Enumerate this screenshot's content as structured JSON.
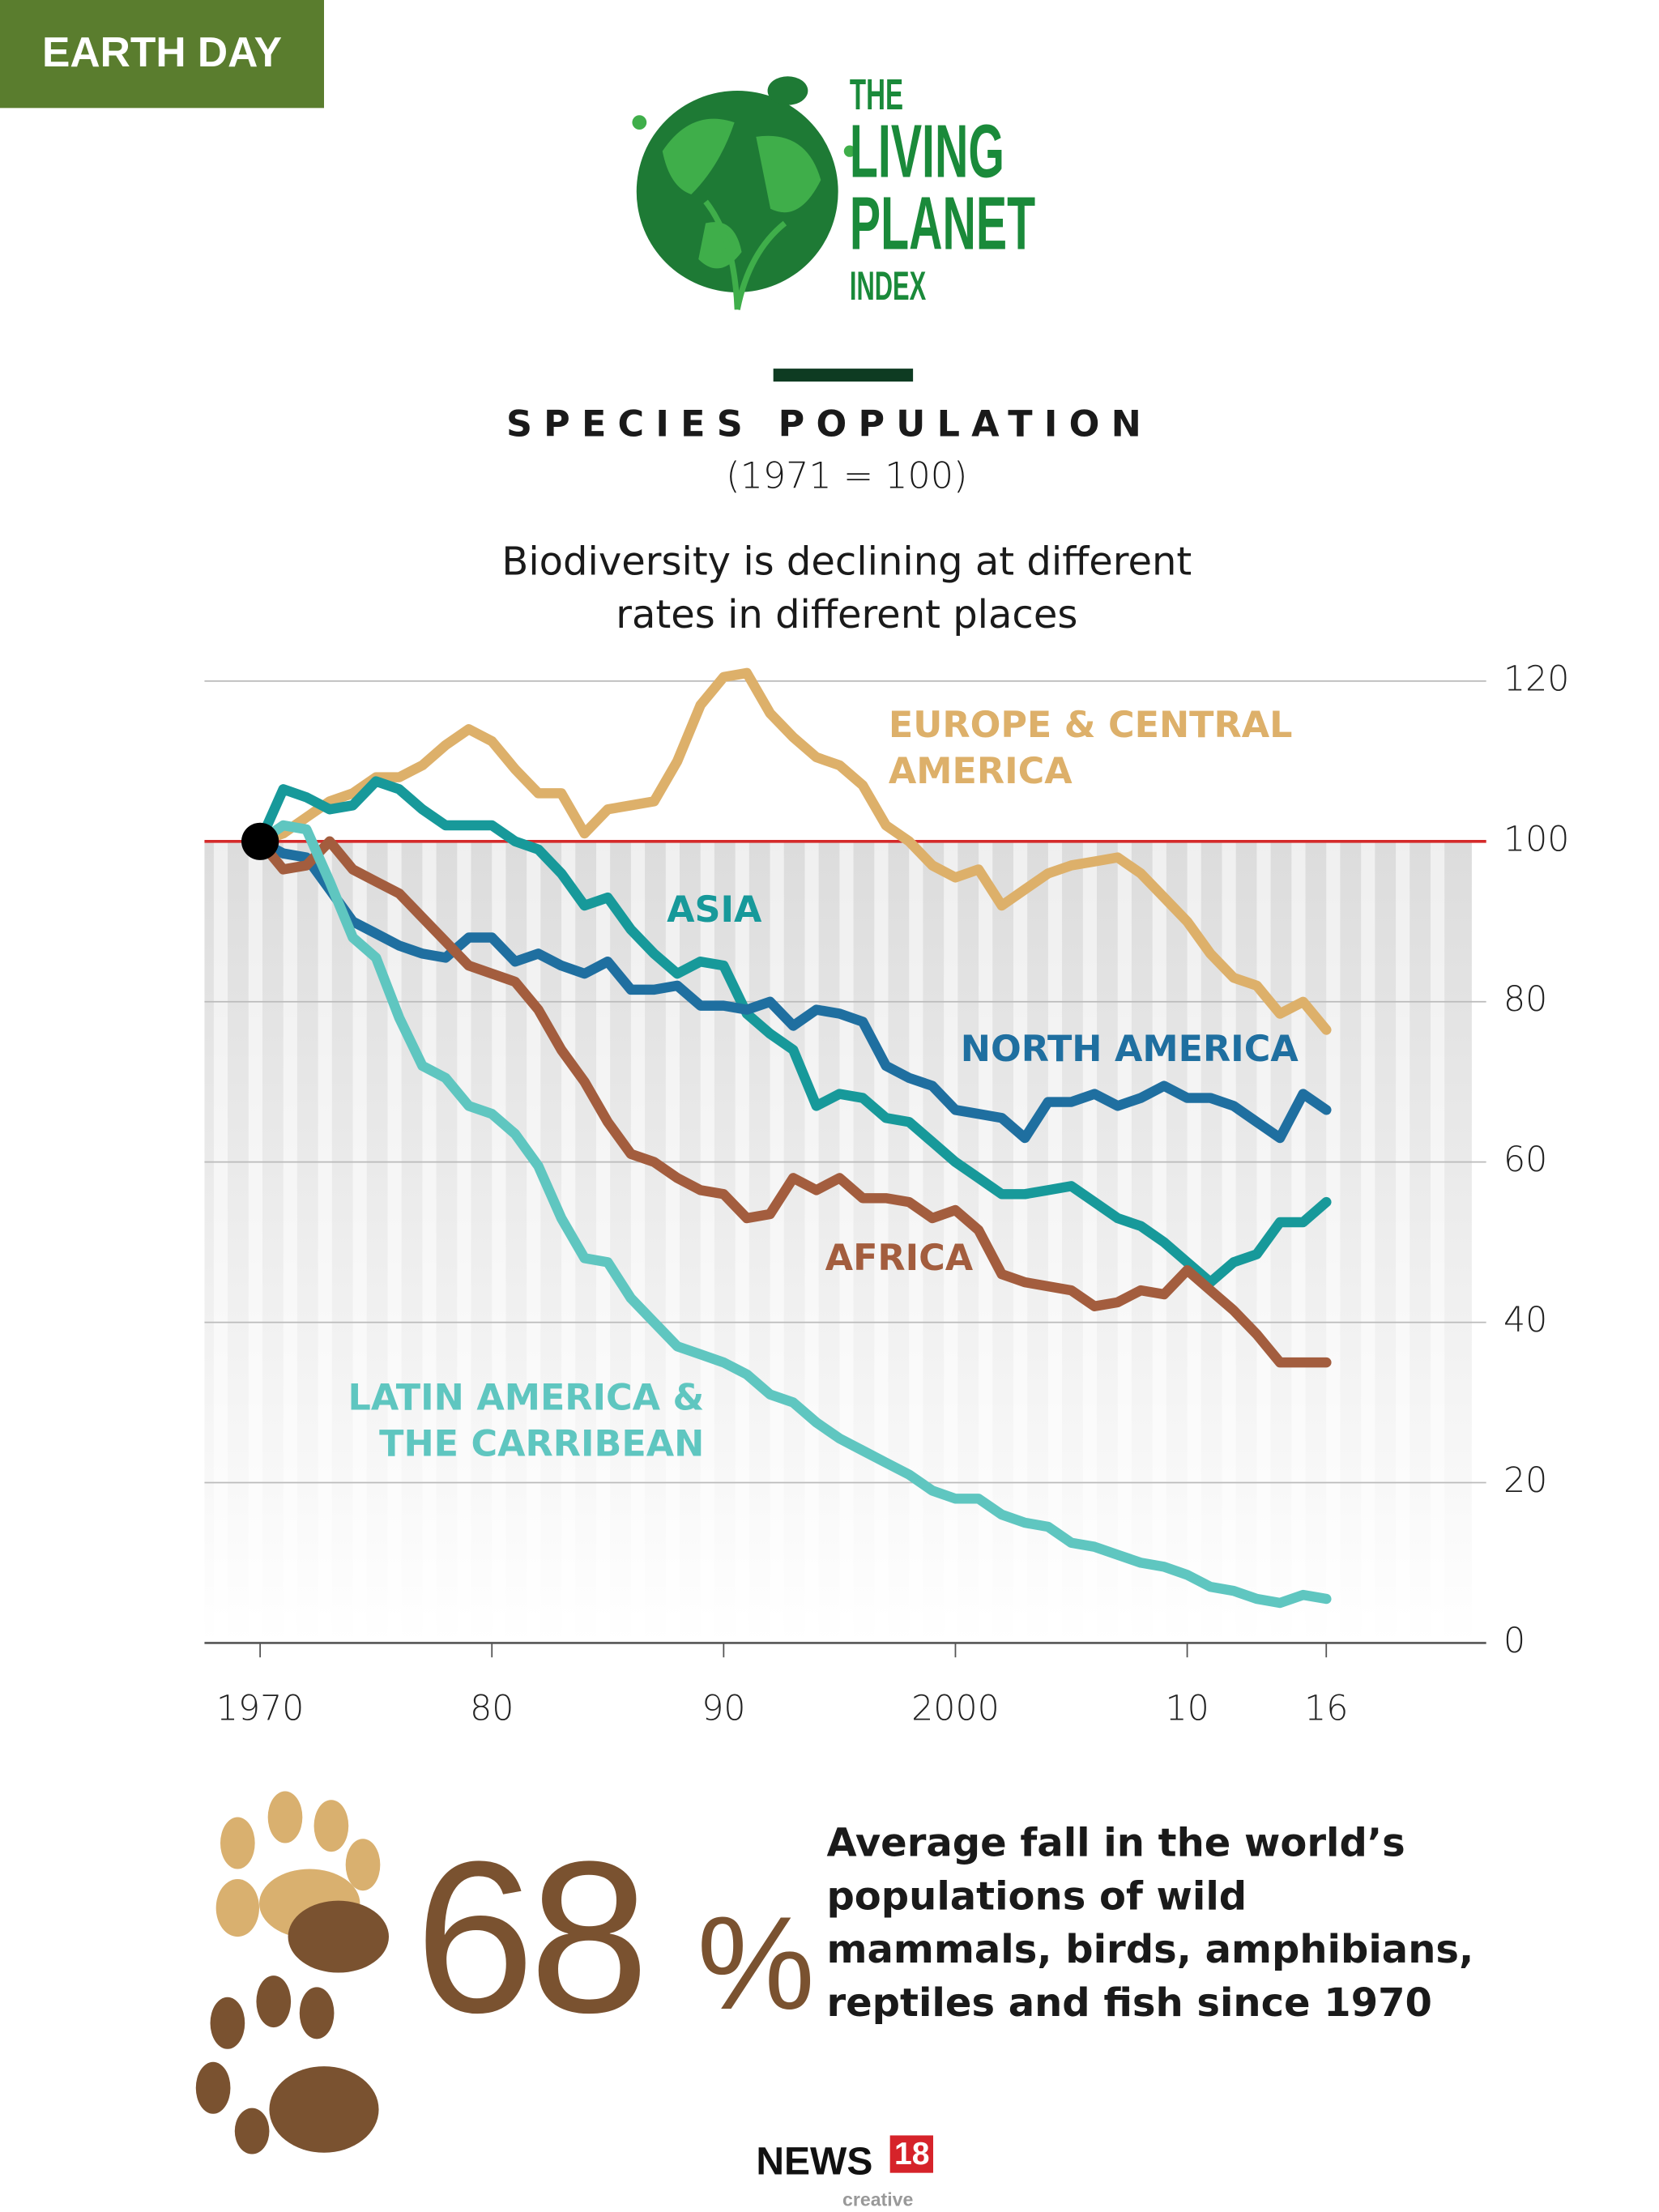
{
  "badge": "EARTH DAY",
  "logo": {
    "lines": [
      "THE",
      "LIVING",
      "PLANET",
      "INDEX"
    ]
  },
  "chart_data": {
    "type": "line",
    "title": "SPECIES POPULATION",
    "subtitle": "(1971 = 100)",
    "description": "Biodiversity is declining at different rates in different places",
    "x": [
      1970,
      1971,
      1972,
      1973,
      1974,
      1975,
      1976,
      1977,
      1978,
      1979,
      1980,
      1981,
      1982,
      1983,
      1984,
      1985,
      1986,
      1987,
      1988,
      1989,
      1990,
      1991,
      1992,
      1993,
      1994,
      1995,
      1996,
      1997,
      1998,
      1999,
      2000,
      2001,
      2002,
      2003,
      2004,
      2005,
      2006,
      2007,
      2008,
      2009,
      2010,
      2011,
      2012,
      2013,
      2014,
      2015,
      2016
    ],
    "series": [
      {
        "name": "EUROPE & CENTRAL AMERICA",
        "color": "#ddb06a",
        "values": [
          100,
          101,
          103,
          105,
          106,
          108,
          108,
          109.5,
          112,
          114,
          112.5,
          109,
          106,
          106,
          101,
          104,
          104.5,
          105,
          110,
          117,
          120.5,
          121,
          116,
          113,
          110.5,
          109.5,
          107,
          102,
          100,
          97,
          95.5,
          96.5,
          92,
          94,
          96,
          97,
          97.5,
          98,
          96,
          93,
          90,
          86,
          83,
          82,
          78.5,
          80,
          76.5
        ]
      },
      {
        "name": "ASIA",
        "color": "#17999a",
        "values": [
          100,
          106.5,
          105.5,
          104,
          104.5,
          107.5,
          106.5,
          104,
          102,
          102,
          102,
          100,
          99,
          96,
          92,
          93,
          89,
          86,
          83.5,
          85,
          84.5,
          78.5,
          76,
          74,
          67,
          68.5,
          68,
          65.5,
          65,
          62.5,
          60,
          58,
          56,
          56,
          56.5,
          57,
          55,
          53,
          52,
          50,
          47.5,
          45,
          47.5,
          48.5,
          52.5,
          52.5,
          55
        ]
      },
      {
        "name": "NORTH AMERICA",
        "color": "#1f6fa0",
        "values": [
          100,
          98.5,
          98,
          94,
          90,
          88.5,
          87,
          86,
          85.5,
          88,
          88,
          85,
          86,
          84.5,
          83.5,
          85,
          81.5,
          81.5,
          82,
          79.5,
          79.5,
          79,
          80,
          77,
          79,
          78.5,
          77.5,
          72,
          70.5,
          69.5,
          66.5,
          66,
          65.5,
          63,
          67.5,
          67.5,
          68.5,
          67,
          68,
          69.5,
          68,
          68,
          67,
          65,
          63,
          68.5,
          66.5
        ]
      },
      {
        "name": "AFRICA",
        "color": "#a35d3e",
        "values": [
          100,
          96.5,
          97,
          100,
          96.5,
          95,
          93.5,
          90.5,
          87.5,
          84.5,
          83.5,
          82.5,
          79,
          74,
          70,
          65,
          61,
          60,
          58,
          56.5,
          56,
          53,
          53.5,
          58,
          56.5,
          58,
          55.5,
          55.5,
          55,
          53,
          54,
          51.5,
          46,
          45,
          44.5,
          44,
          42,
          42.5,
          44,
          43.5,
          46.5,
          44,
          41.5,
          38.5,
          35,
          35,
          35
        ]
      },
      {
        "name": "LATIN AMERICA & THE CARRIBEAN",
        "color": "#5fc6c0",
        "values": [
          100,
          102,
          101.5,
          95,
          88,
          85.5,
          78,
          72,
          70.5,
          67,
          66,
          63.5,
          59.5,
          53,
          48,
          47.5,
          43,
          40,
          37,
          36,
          35,
          33.5,
          31,
          30,
          27.5,
          25.5,
          24,
          22.5,
          21,
          19,
          18,
          18,
          16,
          15,
          14.5,
          12.5,
          12,
          11,
          10,
          9.5,
          8.5,
          7,
          6.5,
          5.5,
          5,
          6,
          5.5
        ]
      }
    ],
    "xlim": [
      1967.6,
      2022.9
    ],
    "xticks": [
      1970,
      {
        "value": 1980,
        "label": "80"
      },
      {
        "value": 1990,
        "label": "90"
      },
      2000,
      {
        "value": 2010,
        "label": "10"
      },
      {
        "value": 2016,
        "label": "16"
      }
    ],
    "ylim": [
      0,
      120
    ],
    "yticks": [
      0,
      20,
      40,
      60,
      80,
      100,
      120
    ],
    "grid": true,
    "reference_line": {
      "value": 100,
      "color": "#d42a2a"
    }
  },
  "stat": {
    "number": "68",
    "unit": "%",
    "text": "Average fall in the world’s populations of wild mammals, birds, amphibians, reptiles and fish since 1970"
  },
  "footer": {
    "brand": "NEWS",
    "number": "18",
    "tag": "creative"
  }
}
